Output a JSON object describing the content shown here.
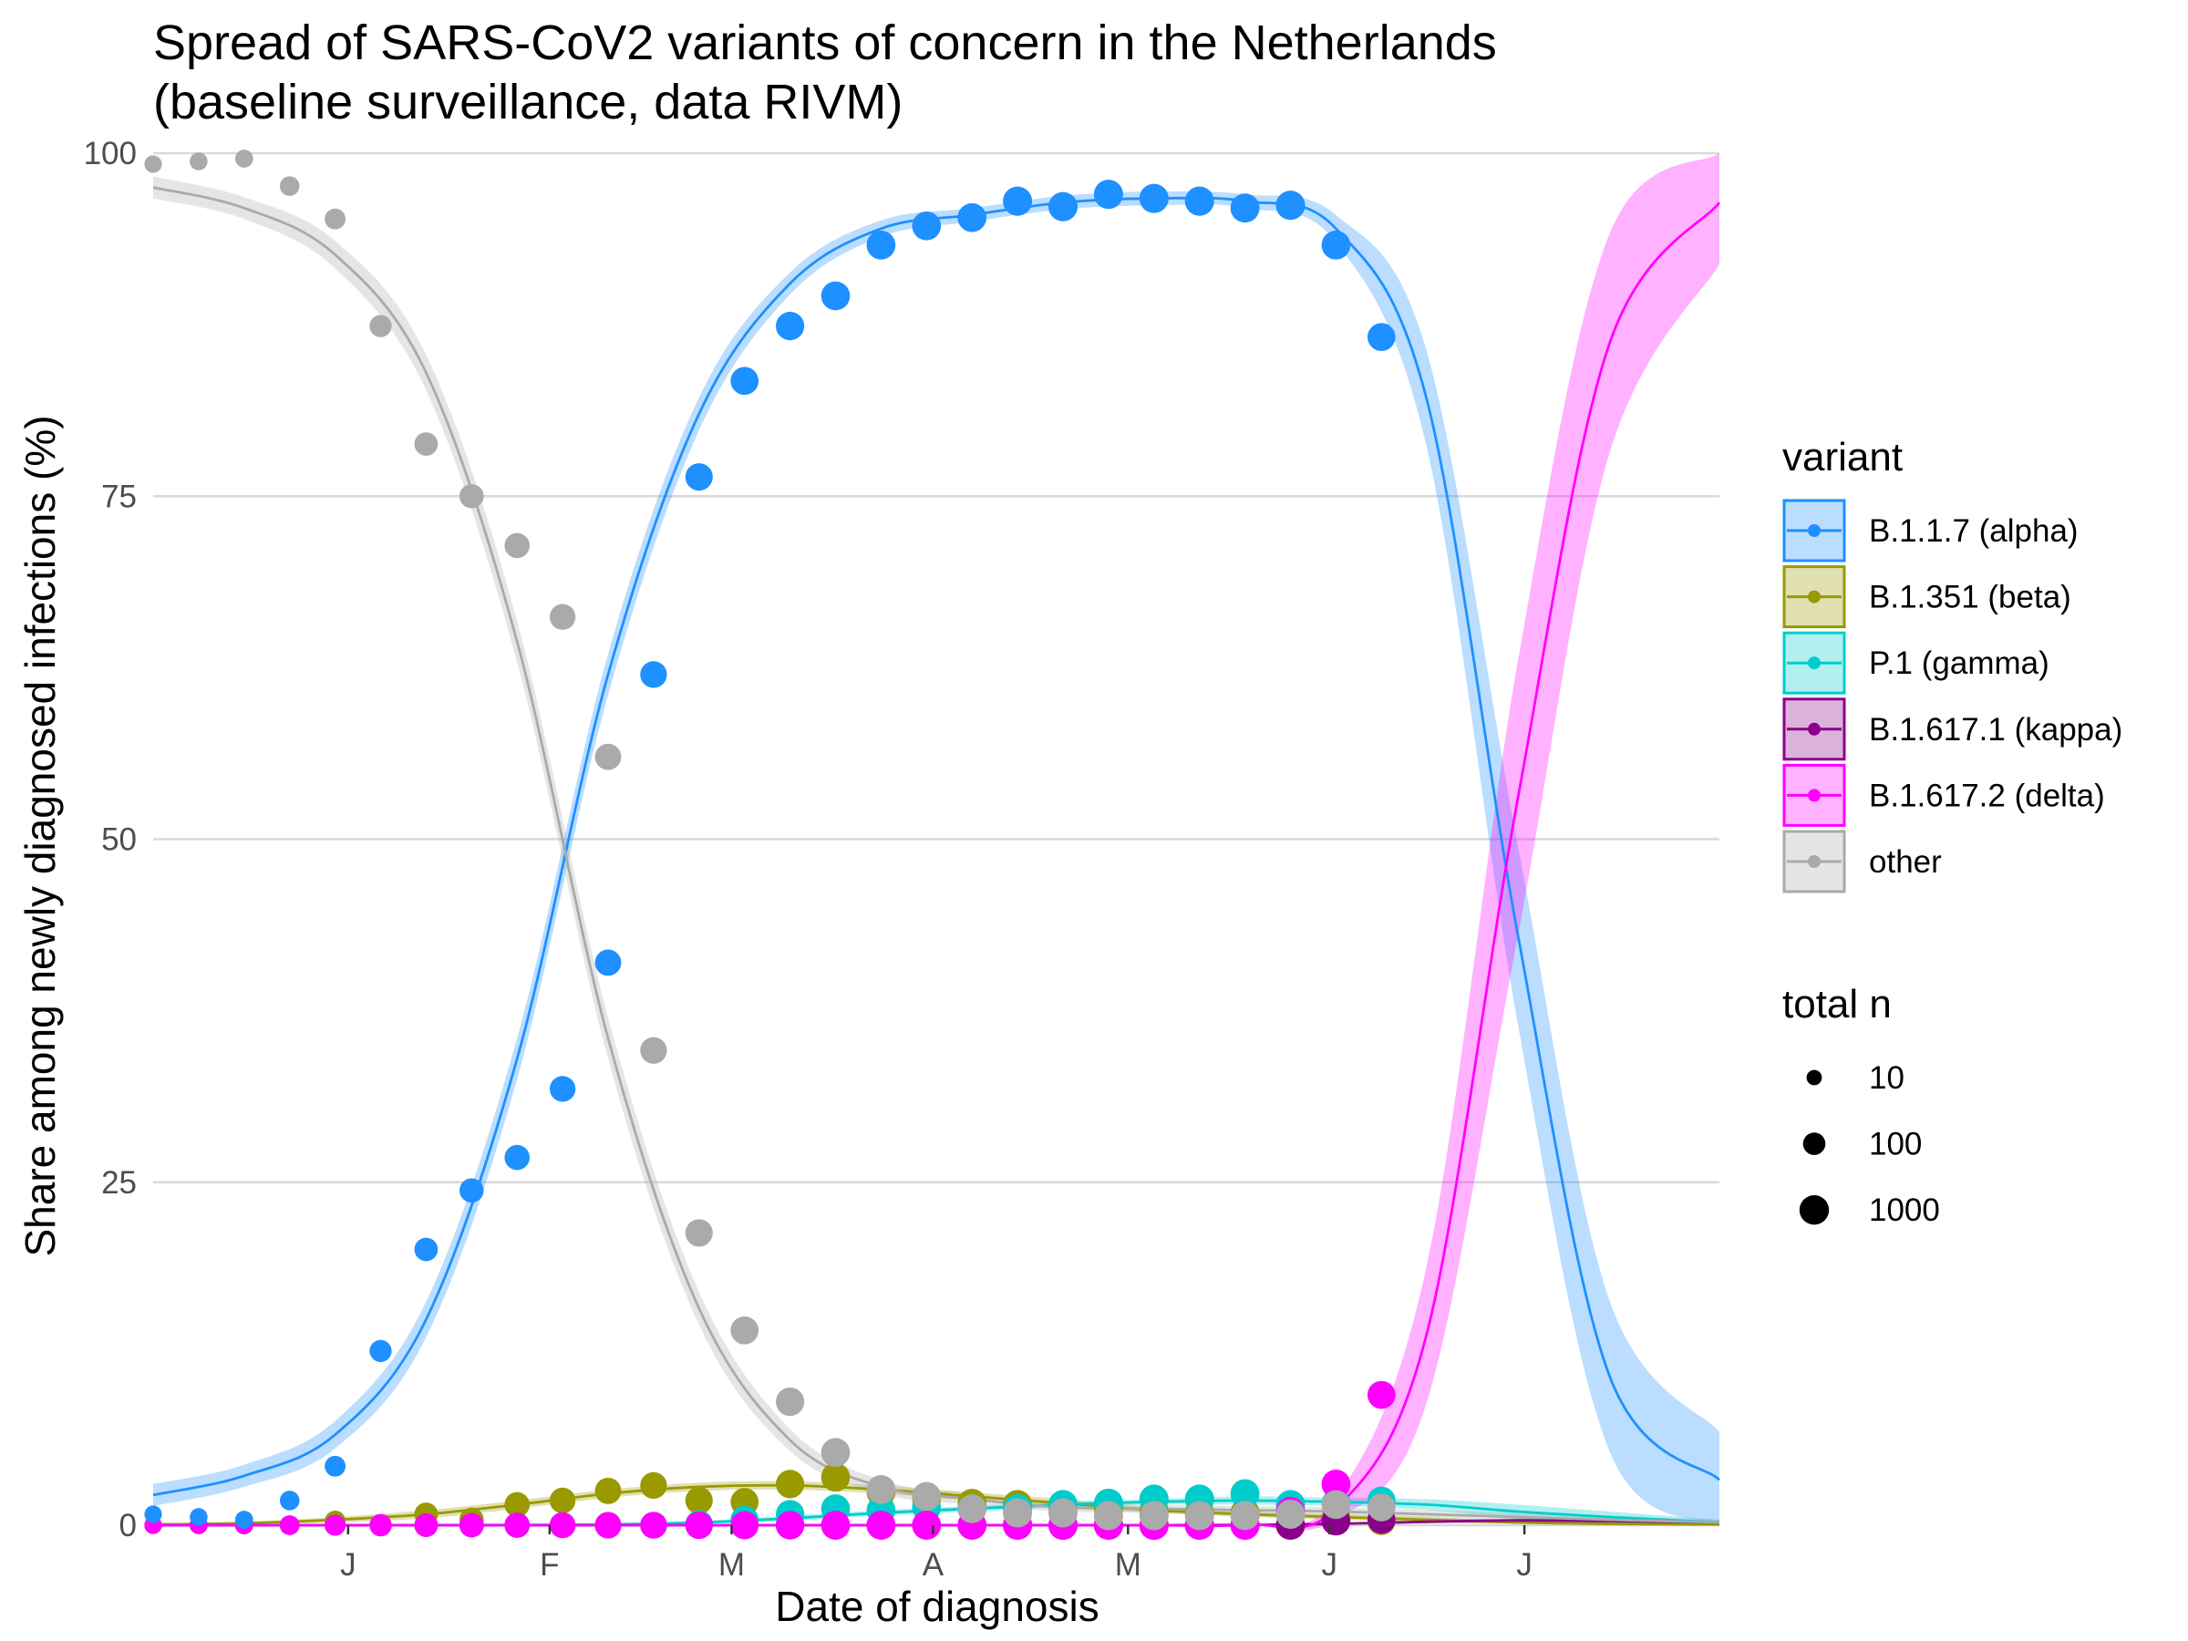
{
  "chart_data": {
    "type": "scatter",
    "title_lines": [
      "Spread of SARS-CoV2 variants of concern in the Netherlands",
      "(baseline surveillance, data RIVM)"
    ],
    "xlabel": "Date of diagnosis",
    "ylabel": "Share among newly diagnosed infections (%)",
    "x_range": [
      "2020-12-02",
      "2021-07-31"
    ],
    "ylim": [
      0,
      100
    ],
    "x_ticks": [
      {
        "date": "2021-01-01",
        "label": "J"
      },
      {
        "date": "2021-02-01",
        "label": "F"
      },
      {
        "date": "2021-03-01",
        "label": "M"
      },
      {
        "date": "2021-04-01",
        "label": "A"
      },
      {
        "date": "2021-05-01",
        "label": "M"
      },
      {
        "date": "2021-06-01",
        "label": "J"
      },
      {
        "date": "2021-07-01",
        "label": "J"
      }
    ],
    "y_ticks": [
      0,
      25,
      50,
      75,
      100
    ],
    "grid": "horizontal major",
    "legend_position": "right",
    "legend_color_title": "variant",
    "legend_size_title": "total n",
    "size_legend": [
      {
        "label": "10",
        "n": 10
      },
      {
        "label": "100",
        "n": 100
      },
      {
        "label": "1000",
        "n": 1000
      }
    ],
    "point_dates": [
      "2020-12-02",
      "2020-12-09",
      "2020-12-16",
      "2020-12-23",
      "2020-12-30",
      "2021-01-06",
      "2021-01-13",
      "2021-01-20",
      "2021-01-27",
      "2021-02-03",
      "2021-02-10",
      "2021-02-17",
      "2021-02-24",
      "2021-03-03",
      "2021-03-10",
      "2021-03-17",
      "2021-03-24",
      "2021-03-31",
      "2021-04-07",
      "2021-04-14",
      "2021-04-21",
      "2021-04-28",
      "2021-05-05",
      "2021-05-12",
      "2021-05-19",
      "2021-05-26",
      "2021-06-02",
      "2021-06-09"
    ],
    "total_n": [
      20,
      22,
      24,
      40,
      60,
      90,
      140,
      180,
      240,
      300,
      350,
      400,
      500,
      600,
      700,
      800,
      800,
      800,
      800,
      900,
      900,
      900,
      900,
      900,
      850,
      900,
      800,
      600
    ],
    "fit_dates": [
      "2020-12-02",
      "2020-12-16",
      "2020-12-30",
      "2021-01-13",
      "2021-01-27",
      "2021-02-10",
      "2021-02-24",
      "2021-03-10",
      "2021-03-24",
      "2021-04-07",
      "2021-04-21",
      "2021-05-05",
      "2021-05-19",
      "2021-06-02",
      "2021-06-16",
      "2021-06-30",
      "2021-07-14",
      "2021-07-31"
    ],
    "series": [
      {
        "name": "B.1.1.7 (alpha)",
        "color": "#1e90ff",
        "points": [
          0.8,
          0.6,
          0.4,
          1.8,
          4.3,
          12.7,
          20.1,
          24.4,
          26.8,
          31.8,
          41.0,
          62.0,
          76.4,
          83.4,
          87.4,
          89.6,
          93.3,
          94.7,
          95.3,
          96.5,
          96.1,
          97.0,
          96.7,
          96.5,
          96.0,
          96.2,
          93.3,
          86.6
        ],
        "fit": [
          2.2,
          3.6,
          6.6,
          15.0,
          34.0,
          62.0,
          81.0,
          90.5,
          94.5,
          95.5,
          96.4,
          96.7,
          96.5,
          94.5,
          82.0,
          43.0,
          11.0,
          3.3
        ],
        "band_halfwidth": [
          0.8,
          0.8,
          1.0,
          1.3,
          1.5,
          1.5,
          1.2,
          0.8,
          0.6,
          0.5,
          0.5,
          0.5,
          0.5,
          1.0,
          3.5,
          6.5,
          5.5,
          3.5
        ]
      },
      {
        "name": "B.1.351 (beta)",
        "color": "#999900",
        "points": [
          0,
          0,
          0,
          0,
          0.3,
          0,
          0.8,
          0.4,
          1.5,
          1.8,
          2.5,
          2.9,
          1.8,
          1.7,
          3.0,
          3.5,
          2.4,
          1.9,
          1.6,
          1.5,
          1.3,
          1.2,
          1.0,
          0.9,
          0.9,
          0.8,
          0.5,
          0.3
        ],
        "fit": [
          0.05,
          0.15,
          0.4,
          0.8,
          1.5,
          2.3,
          2.8,
          2.9,
          2.6,
          2.1,
          1.6,
          1.1,
          0.8,
          0.6,
          0.4,
          0.2,
          0.1,
          0.05
        ],
        "band_halfwidth": [
          0.1,
          0.1,
          0.2,
          0.3,
          0.3,
          0.3,
          0.3,
          0.3,
          0.3,
          0.3,
          0.3,
          0.2,
          0.2,
          0.2,
          0.2,
          0.1,
          0.1,
          0.05
        ]
      },
      {
        "name": "P.1 (gamma)",
        "color": "#00cccc",
        "points": [
          0,
          0,
          0,
          0,
          0,
          0,
          0,
          0,
          0,
          0,
          0,
          0,
          0.1,
          0.4,
          0.8,
          1.2,
          1.1,
          1.3,
          1.2,
          1.2,
          1.5,
          1.6,
          1.9,
          1.9,
          2.3,
          1.5,
          1.6,
          1.8
        ],
        "fit": [
          0,
          0,
          0,
          0,
          0.02,
          0.06,
          0.2,
          0.5,
          0.9,
          1.2,
          1.5,
          1.7,
          1.8,
          1.7,
          1.5,
          1.0,
          0.6,
          0.2
        ],
        "band_halfwidth": [
          0,
          0,
          0,
          0,
          0.02,
          0.05,
          0.1,
          0.2,
          0.2,
          0.2,
          0.2,
          0.2,
          0.3,
          0.3,
          0.4,
          0.5,
          0.4,
          0.2
        ]
      },
      {
        "name": "B.1.617.1 (kappa)",
        "color": "#8b008b",
        "points": [
          0,
          0,
          0,
          0,
          0,
          0,
          0,
          0,
          0,
          0,
          0,
          0,
          0,
          0,
          0,
          0,
          0,
          0,
          0,
          0,
          0,
          0,
          0,
          0,
          0,
          0,
          0.3,
          0.4
        ],
        "fit": [
          0,
          0,
          0,
          0,
          0,
          0,
          0,
          0,
          0,
          0,
          0,
          0,
          0.02,
          0.1,
          0.25,
          0.35,
          0.3,
          0.2
        ],
        "band_halfwidth": [
          0,
          0,
          0,
          0,
          0,
          0,
          0,
          0,
          0,
          0,
          0,
          0,
          0.02,
          0.05,
          0.1,
          0.15,
          0.15,
          0.1
        ]
      },
      {
        "name": "B.1.617.2 (delta)",
        "color": "#ff00ff",
        "points": [
          0,
          0,
          0,
          0,
          0,
          0,
          0,
          0,
          0,
          0,
          0,
          0,
          0,
          0,
          0,
          0,
          0,
          0,
          0,
          0,
          0,
          0,
          0,
          0,
          0,
          1.0,
          3.0,
          9.5
        ],
        "fit": [
          0,
          0,
          0,
          0,
          0,
          0,
          0,
          0,
          0,
          0,
          0,
          0,
          0.05,
          1.2,
          14.0,
          53.0,
          86.0,
          96.4
        ],
        "band_halfwidth": [
          0,
          0,
          0,
          0,
          0,
          0,
          0,
          0,
          0,
          0,
          0,
          0,
          0.05,
          0.8,
          5.0,
          10.0,
          8.0,
          4.5
        ]
      },
      {
        "name": "other",
        "color": "#aaaaaa",
        "points": [
          99.2,
          99.4,
          99.6,
          97.6,
          95.2,
          87.4,
          78.8,
          75.0,
          71.4,
          66.2,
          56.0,
          34.6,
          21.3,
          14.2,
          9.0,
          5.3,
          2.6,
          2.1,
          1.2,
          0.9,
          0.9,
          0.7,
          0.7,
          0.7,
          0.7,
          0.8,
          1.5,
          1.3
        ],
        "fit": [
          97.5,
          96.0,
          92.6,
          84.0,
          64.4,
          35.5,
          15.8,
          6.2,
          2.8,
          1.9,
          1.3,
          1.2,
          1.1,
          1.0,
          0.8,
          0.6,
          0.4,
          0.2
        ],
        "band_halfwidth": [
          0.8,
          0.8,
          1.0,
          1.3,
          1.5,
          1.5,
          1.2,
          0.8,
          0.5,
          0.4,
          0.3,
          0.3,
          0.3,
          0.3,
          0.3,
          0.3,
          0.3,
          0.2
        ]
      }
    ]
  }
}
